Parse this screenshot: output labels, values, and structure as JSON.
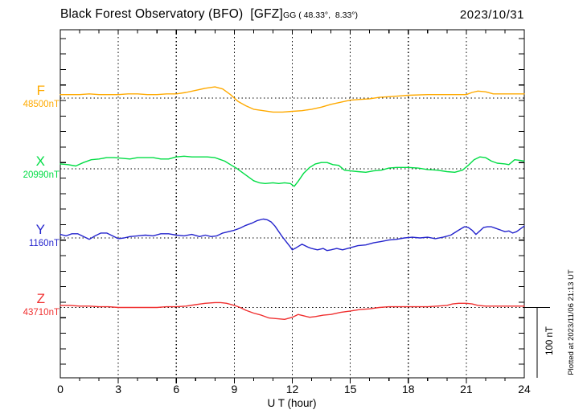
{
  "header": {
    "title": "Black Forest Observatory (BFO)  [GFZ]",
    "coords": "GG ( 48.33°,  8.33°)",
    "date": "2023/10/31"
  },
  "footer": {
    "plotted_note": "Plotted at 2023/11/06 21:13 UT"
  },
  "chart_data": {
    "type": "line",
    "title": "Black Forest Observatory (BFO)  [GFZ]",
    "subtitle": "GG ( 48.33°,  8.33°)",
    "date": "2023/10/31",
    "xlabel": "U T (hour)",
    "x_range": [
      0,
      24
    ],
    "x_ticks": [
      0,
      3,
      6,
      9,
      12,
      15,
      18,
      21,
      24
    ],
    "grid": "dotted vertical at 3h, dotted horizontal baselines per trace",
    "legend_position": "left margin trace labels",
    "scale_bar": {
      "label": "100 nT",
      "nT": 100
    },
    "series": [
      {
        "id": "F",
        "label": "F",
        "base_label": "48500nT",
        "base_nT": 48500,
        "color": "#ffaa00",
        "units": "nT offset from base",
        "hours": [
          0,
          0.5,
          1,
          1.5,
          2,
          2.5,
          3,
          3.5,
          4,
          4.5,
          5,
          5.5,
          6,
          6.5,
          7,
          7.5,
          8,
          8.4,
          8.8,
          9.2,
          9.6,
          10,
          10.5,
          11,
          11.5,
          12,
          12.5,
          13,
          13.5,
          14,
          14.5,
          15,
          15.5,
          16,
          16.5,
          17,
          17.5,
          18,
          19,
          20,
          21,
          21.3,
          21.6,
          22,
          22.4,
          23,
          23.5,
          24
        ],
        "delta_nT": [
          5,
          5,
          5,
          6,
          5,
          5,
          5,
          6,
          6,
          5,
          5,
          6,
          6,
          8,
          11,
          14,
          16,
          13,
          5,
          -5,
          -11,
          -16,
          -18,
          -20,
          -20,
          -19,
          -18,
          -16,
          -13,
          -9,
          -6,
          -3,
          -2,
          -1,
          1,
          2,
          3,
          4,
          5,
          5,
          5,
          8,
          10,
          9,
          6,
          6,
          6,
          6
        ]
      },
      {
        "id": "X",
        "label": "X",
        "base_label": "20990nT",
        "base_nT": 20990,
        "color": "#00dd44",
        "units": "nT offset from base",
        "hours": [
          0,
          0.4,
          0.8,
          1.2,
          1.6,
          2,
          2.4,
          2.8,
          3.2,
          3.6,
          4,
          4.4,
          4.8,
          5.2,
          5.6,
          6,
          6.4,
          6.8,
          7.2,
          7.6,
          8,
          8.2,
          8.5,
          8.8,
          9.1,
          9.4,
          9.7,
          10,
          10.3,
          10.6,
          11,
          11.3,
          11.6,
          11.9,
          12.1,
          12.3,
          12.6,
          12.9,
          13.2,
          13.5,
          13.8,
          14.1,
          14.4,
          14.7,
          15,
          15.4,
          15.8,
          16.2,
          16.6,
          17,
          17.4,
          18,
          18.5,
          19,
          19.5,
          20,
          20.4,
          20.8,
          21.1,
          21.4,
          21.7,
          22,
          22.3,
          22.6,
          23,
          23.2,
          23.5,
          23.8,
          24
        ],
        "delta_nT": [
          7,
          6,
          4,
          9,
          13,
          14,
          16,
          16,
          15,
          14,
          16,
          16,
          16,
          14,
          14,
          17,
          18,
          17,
          17,
          17,
          16,
          14,
          11,
          6,
          1,
          -5,
          -11,
          -17,
          -20,
          -21,
          -20,
          -21,
          -20,
          -21,
          -25,
          -18,
          -6,
          2,
          7,
          9,
          9,
          6,
          5,
          -2,
          -3,
          -4,
          -5,
          -3,
          -2,
          1,
          2,
          2,
          1,
          -1,
          -2,
          -4,
          -5,
          -2,
          5,
          13,
          17,
          16,
          11,
          8,
          7,
          6,
          13,
          12,
          11
        ]
      },
      {
        "id": "Y",
        "label": "Y",
        "base_label": "1160nT",
        "base_nT": 1160,
        "color": "#2525cd",
        "units": "nT offset from base",
        "hours": [
          0,
          0.3,
          0.6,
          0.9,
          1.2,
          1.5,
          1.8,
          2.1,
          2.4,
          2.7,
          3,
          3.3,
          3.6,
          4,
          4.4,
          4.8,
          5.2,
          5.6,
          6,
          6.4,
          6.8,
          7.2,
          7.5,
          7.8,
          8.1,
          8.4,
          8.7,
          9,
          9.3,
          9.6,
          9.9,
          10.2,
          10.5,
          10.7,
          10.9,
          11.1,
          11.3,
          11.5,
          11.7,
          11.9,
          12,
          12.2,
          12.5,
          12.8,
          13,
          13.3,
          13.6,
          13.8,
          14,
          14.3,
          14.6,
          15,
          15.4,
          15.8,
          16.2,
          16.6,
          17,
          17.4,
          17.8,
          18.2,
          18.6,
          19,
          19.4,
          19.8,
          20.2,
          20.6,
          20.9,
          21.1,
          21.3,
          21.5,
          21.7,
          21.9,
          22.1,
          22.3,
          22.5,
          22.8,
          23,
          23.2,
          23.4,
          23.6,
          23.8,
          24
        ],
        "delta_nT": [
          5,
          3,
          6,
          6,
          2,
          -2,
          3,
          7,
          7,
          3,
          -1,
          0,
          2,
          3,
          4,
          3,
          6,
          6,
          4,
          3,
          5,
          2,
          4,
          2,
          3,
          7,
          9,
          11,
          14,
          18,
          21,
          25,
          27,
          26,
          23,
          17,
          9,
          1,
          -6,
          -13,
          -17,
          -14,
          -9,
          -13,
          -15,
          -17,
          -15,
          -18,
          -17,
          -15,
          -17,
          -14,
          -11,
          -10,
          -7,
          -5,
          -3,
          -2,
          0,
          1,
          0,
          1,
          -1,
          1,
          4,
          11,
          16,
          15,
          11,
          5,
          10,
          15,
          16,
          16,
          14,
          11,
          9,
          10,
          7,
          9,
          13,
          17
        ]
      },
      {
        "id": "Z",
        "label": "Z",
        "base_label": "43710nT",
        "base_nT": 43710,
        "color": "#f03030",
        "units": "nT offset from base",
        "hours": [
          0,
          0.5,
          1,
          1.5,
          2,
          2.5,
          3,
          3.5,
          4,
          4.5,
          5,
          5.5,
          6,
          6.5,
          7,
          7.5,
          8,
          8.3,
          8.6,
          9,
          9.3,
          9.6,
          10,
          10.4,
          10.8,
          11.2,
          11.6,
          12,
          12.3,
          12.6,
          12.9,
          13.2,
          13.6,
          14,
          14.5,
          15,
          15.5,
          16,
          16.5,
          17,
          17.5,
          18,
          18.5,
          19,
          19.5,
          20,
          20.3,
          20.6,
          21,
          21.3,
          21.6,
          22,
          22.5,
          23,
          23.5,
          24
        ],
        "delta_nT": [
          3,
          3,
          2,
          2,
          1,
          1,
          0,
          0,
          0,
          0,
          0,
          1,
          1,
          2,
          4,
          6,
          7,
          7,
          6,
          3,
          0,
          -4,
          -8,
          -11,
          -15,
          -16,
          -17,
          -14,
          -10,
          -12,
          -14,
          -13,
          -11,
          -10,
          -7,
          -5,
          -3,
          -2,
          0,
          1,
          1,
          1,
          1,
          1,
          2,
          3,
          5,
          6,
          6,
          5,
          3,
          2,
          2,
          2,
          2,
          2
        ]
      }
    ]
  }
}
